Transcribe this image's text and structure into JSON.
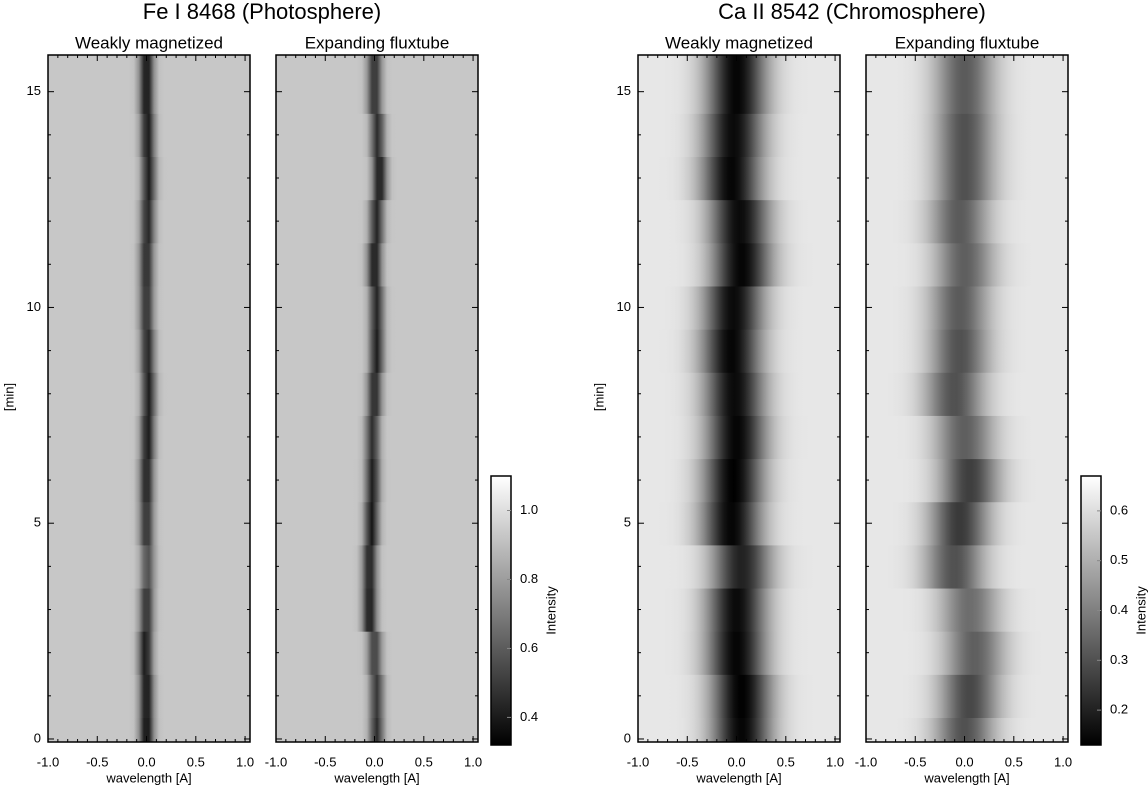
{
  "chart_data": [
    {
      "type": "heatmap",
      "title": "Fe I 8468 (Photosphere)",
      "xlabel": "wavelength [A]",
      "ylabel": "[min]",
      "xlim": [
        -1.0,
        1.05
      ],
      "xticks": [
        {
          "value": -1.0,
          "label": "-1.0"
        },
        -0.5,
        {
          "value": 0,
          "label": "0.0"
        },
        0.5,
        {
          "value": 1.0,
          "label": "1.0"
        }
      ],
      "ylim": [
        -0.07,
        15.85
      ],
      "yticks": [
        0,
        5,
        10,
        15
      ],
      "time": [
        0,
        1,
        2,
        3,
        4,
        5,
        6,
        7,
        8,
        9,
        10,
        11,
        12,
        13,
        14,
        15
      ],
      "colorbar": {
        "label": "Intensity",
        "lim": [
          0.32,
          1.1
        ],
        "ticks": [
          0.4,
          0.6,
          0.8,
          {
            "value": 1.0,
            "label": "1.0"
          }
        ]
      },
      "panels": [
        {
          "subtitle": "Weakly magnetized",
          "continuum": 0.93,
          "line_width": 0.07,
          "line_center": [
            0.0,
            0.0,
            -0.01,
            0.0,
            0.01,
            0.0,
            0.0,
            0.01,
            0.02,
            0.01,
            0.0,
            0.0,
            0.01,
            0.02,
            0.01,
            0.0
          ],
          "line_core": [
            0.34,
            0.36,
            0.38,
            0.45,
            0.55,
            0.45,
            0.4,
            0.38,
            0.4,
            0.42,
            0.45,
            0.43,
            0.42,
            0.4,
            0.38,
            0.36
          ]
        },
        {
          "subtitle": "Expanding fluxtube",
          "continuum": 0.93,
          "line_width": 0.07,
          "line_center": [
            0.02,
            0.02,
            0.0,
            -0.05,
            -0.05,
            -0.03,
            -0.02,
            -0.02,
            0.0,
            0.02,
            0.02,
            0.0,
            0.02,
            0.05,
            0.03,
            0.0
          ],
          "line_core": [
            0.45,
            0.48,
            0.5,
            0.38,
            0.4,
            0.38,
            0.4,
            0.45,
            0.42,
            0.4,
            0.42,
            0.38,
            0.42,
            0.38,
            0.45,
            0.45
          ]
        }
      ]
    },
    {
      "type": "heatmap",
      "title": "Ca II 8542 (Chromosphere)",
      "xlabel": "wavelength [A]",
      "ylabel": "[min]",
      "xlim": [
        -1.0,
        1.05
      ],
      "xticks": [
        {
          "value": -1.0,
          "label": "-1.0"
        },
        -0.5,
        {
          "value": 0,
          "label": "0.0"
        },
        0.5,
        {
          "value": 1.0,
          "label": "1.0"
        }
      ],
      "ylim": [
        -0.07,
        15.85
      ],
      "yticks": [
        0,
        5,
        10,
        15
      ],
      "time": [
        0,
        1,
        2,
        3,
        4,
        5,
        6,
        7,
        8,
        9,
        10,
        11,
        12,
        13,
        14,
        15
      ],
      "colorbar": {
        "label": "Intensity",
        "lim": [
          0.13,
          0.67
        ],
        "ticks": [
          0.2,
          0.3,
          0.4,
          0.5,
          0.6
        ]
      },
      "panels": [
        {
          "subtitle": "Weakly magnetized",
          "continuum": 0.62,
          "line_width": 0.3,
          "line_center": [
            0.05,
            0.05,
            0.0,
            0.0,
            0.05,
            -0.05,
            -0.03,
            0.0,
            -0.02,
            -0.05,
            -0.03,
            0.05,
            0.03,
            -0.05,
            -0.03,
            0.0
          ],
          "line_core": [
            0.14,
            0.13,
            0.14,
            0.15,
            0.2,
            0.14,
            0.13,
            0.14,
            0.15,
            0.14,
            0.15,
            0.14,
            0.15,
            0.14,
            0.15,
            0.14
          ]
        },
        {
          "subtitle": "Expanding fluxtube",
          "continuum": 0.62,
          "line_width": 0.3,
          "line_center": [
            0.0,
            0.05,
            0.1,
            0.05,
            -0.1,
            -0.05,
            0.05,
            0.0,
            -0.1,
            -0.05,
            -0.05,
            0.0,
            -0.05,
            0.0,
            0.0,
            0.0
          ],
          "line_core": [
            0.3,
            0.28,
            0.33,
            0.36,
            0.3,
            0.25,
            0.26,
            0.33,
            0.3,
            0.3,
            0.32,
            0.33,
            0.32,
            0.3,
            0.3,
            0.32
          ]
        }
      ]
    }
  ]
}
